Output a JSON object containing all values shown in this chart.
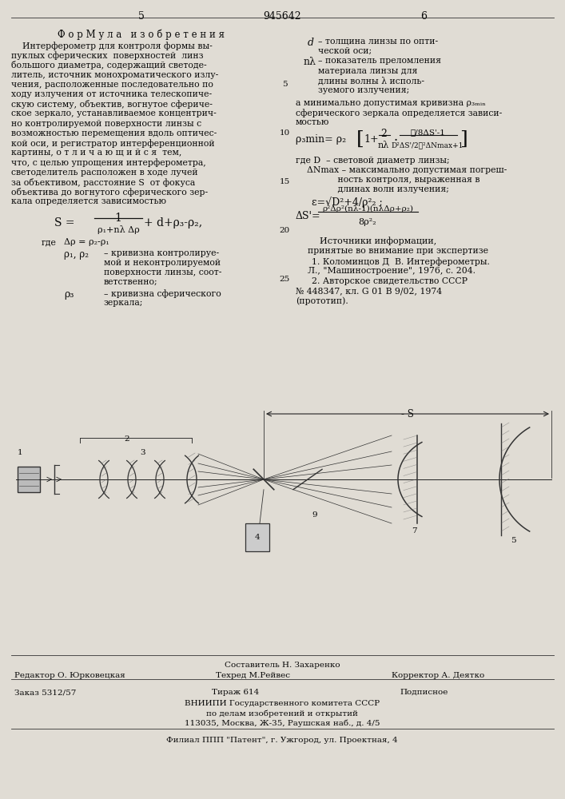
{
  "bg_color": "#e0dcd4",
  "page_num_left": "5",
  "page_num_center": "945642",
  "page_num_right": "6",
  "title": "Ф о р М у л а   и з о б р е т е н и я",
  "left_text": [
    "    Интерферометр для контроля формы вы-",
    "пуклых сферических  поверхностей  линз",
    "большого диаметра, содержащий светоде-",
    "литель, источник монохроматического излу-",
    "чения, расположенные последовательно по",
    "ходу излучения от источника телескопиче-",
    "скую систему, объектив, вогнутое сфериче-",
    "ское зеркало, устанавливаемое концентрич-",
    "но контролируемой поверхности линзы с",
    "возможностью перемещения вдоль оптичес-",
    "кой оси, и регистратор интерференционной",
    "картины, о т л и ч а ю щ и й с я  тем,",
    "что, с целью упрощения интерферометра,",
    "светоделитель расположен в ходе лучей",
    "за объективом, расстояние S  от фокуса",
    "объектива до вогнутого сферического зер-",
    "кала определяется зависимостью"
  ],
  "right_d_text": [
    "d   – толщина линзы по опти-",
    "       ческой оси;",
    "nλ – показатель преломления",
    "       материала линзы для",
    "       длины волны λ исполь-",
    "       зуемого излучения;"
  ],
  "footer_author": "Составитель Н. Захаренко",
  "footer_editor": "Редактор О. Юрковецкая",
  "footer_tech": "Техред М.Рейвес",
  "footer_corr": "Корректор А. Деятко",
  "footer_order": "Заказ 5312/57",
  "footer_print": "Тираж 614",
  "footer_sign": "Подписное",
  "footer_org1": "ВНИИПИ Государственного комитета СССР",
  "footer_org2": "по делам изобретений и открытий",
  "footer_addr": "113035, Москва, Ж-35, Раушская наб., д. 4/5",
  "footer_branch": "Филиал ППП \"Патент\", г. Ужгород, ул. Проектная, 4"
}
